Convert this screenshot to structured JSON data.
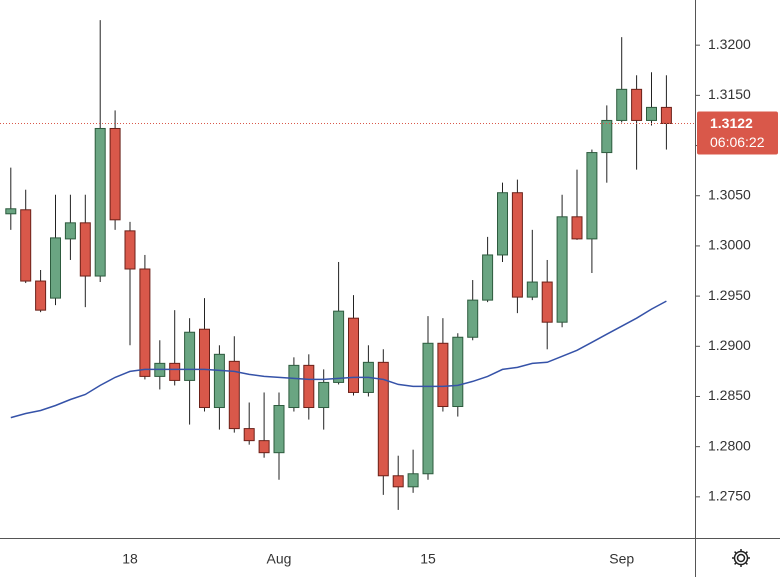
{
  "chart_data": {
    "type": "candlestick",
    "categories": [
      null,
      null,
      null,
      null,
      null,
      null,
      null,
      null,
      "18",
      null,
      null,
      null,
      null,
      null,
      null,
      null,
      null,
      null,
      "Aug",
      null,
      null,
      null,
      null,
      null,
      null,
      null,
      null,
      null,
      "15",
      null,
      null,
      null,
      null,
      null,
      null,
      null,
      null,
      null,
      null,
      null,
      null,
      "Sep",
      null,
      null,
      null
    ],
    "open": [
      1.3032,
      1.3036,
      1.2965,
      1.2948,
      1.3007,
      1.3023,
      1.297,
      1.3117,
      1.3015,
      1.2977,
      1.287,
      1.2883,
      1.2866,
      1.2917,
      1.2839,
      1.2885,
      1.2818,
      1.2806,
      1.2794,
      1.2839,
      1.2881,
      1.2839,
      1.2864,
      1.2928,
      1.2854,
      1.2884,
      1.2771,
      1.276,
      1.2773,
      1.2903,
      1.284,
      1.2909,
      1.2946,
      1.2991,
      1.3053,
      1.2949,
      1.2964,
      1.2924,
      1.3029,
      1.3007,
      1.3093,
      1.3125,
      1.3156,
      1.3125,
      1.3138
    ],
    "high": [
      1.3078,
      1.3056,
      1.2976,
      1.3051,
      1.3051,
      1.3051,
      1.3225,
      1.3135,
      1.3024,
      1.2991,
      1.2906,
      1.2936,
      1.2928,
      1.2948,
      1.2901,
      1.291,
      1.2844,
      1.2854,
      1.2854,
      1.2889,
      1.2892,
      1.2877,
      1.2984,
      1.2951,
      1.2901,
      1.2897,
      1.2791,
      1.2797,
      1.293,
      1.2928,
      1.2913,
      1.2966,
      1.3009,
      1.3063,
      1.3066,
      1.3016,
      1.2986,
      1.3051,
      1.3076,
      1.3096,
      1.314,
      1.3208,
      1.317,
      1.3173,
      1.317
    ],
    "low": [
      1.3016,
      1.2963,
      1.2934,
      1.2941,
      1.2986,
      1.2939,
      1.2964,
      1.3016,
      1.2901,
      1.2867,
      1.2857,
      1.2861,
      1.2822,
      1.2835,
      1.2817,
      1.2814,
      1.2802,
      1.2789,
      1.2767,
      1.2835,
      1.2827,
      1.2817,
      1.2862,
      1.2851,
      1.285,
      1.2752,
      1.2737,
      1.2754,
      1.2767,
      1.2835,
      1.283,
      1.2906,
      1.2944,
      1.2984,
      1.2933,
      1.2946,
      1.2897,
      1.2919,
      1.3006,
      1.2973,
      1.3063,
      1.3123,
      1.3076,
      1.312,
      1.3096
    ],
    "close": [
      1.3037,
      1.2965,
      1.2936,
      1.3008,
      1.3023,
      1.297,
      1.3117,
      1.3026,
      1.2977,
      1.287,
      1.2883,
      1.2866,
      1.2914,
      1.2839,
      1.2892,
      1.2818,
      1.2806,
      1.2794,
      1.2841,
      1.2881,
      1.2839,
      1.2864,
      1.2935,
      1.2854,
      1.2884,
      1.2771,
      1.276,
      1.2773,
      1.2903,
      1.284,
      1.2909,
      1.2946,
      1.2991,
      1.3053,
      1.2949,
      1.2964,
      1.2924,
      1.3029,
      1.3007,
      1.3093,
      1.3125,
      1.3156,
      1.3125,
      1.3138,
      1.3122
    ],
    "up_color": "#6aa582",
    "down_color": "#d9584a",
    "lines": [
      {
        "color": "#3552a8",
        "values": [
          1.2829,
          1.2833,
          1.2836,
          1.2841,
          1.2847,
          1.2852,
          1.2861,
          1.2869,
          1.2875,
          1.2877,
          1.2877,
          1.2877,
          1.2877,
          1.2877,
          1.2876,
          1.2875,
          1.2872,
          1.287,
          1.2869,
          1.2868,
          1.2867,
          1.2867,
          1.2868,
          1.2869,
          1.2869,
          1.2867,
          1.2862,
          1.286,
          1.286,
          1.286,
          1.2861,
          1.2865,
          1.287,
          1.2877,
          1.2879,
          1.2883,
          1.2884,
          1.289,
          1.2896,
          1.2904,
          1.2912,
          1.292,
          1.2928,
          1.2937,
          1.2945
        ]
      }
    ],
    "ylim": [
      1.2709,
      1.3245
    ],
    "yticks": [
      {
        "value": 1.275,
        "label": "1.2750"
      },
      {
        "value": 1.28,
        "label": "1.2800"
      },
      {
        "value": 1.285,
        "label": "1.2850"
      },
      {
        "value": 1.29,
        "label": "1.2900"
      },
      {
        "value": 1.295,
        "label": "1.2950"
      },
      {
        "value": 1.3,
        "label": "1.3000"
      },
      {
        "value": 1.305,
        "label": "1.3050"
      },
      {
        "value": 1.31,
        "label": "1.3100"
      },
      {
        "value": 1.315,
        "label": "1.3150"
      },
      {
        "value": 1.32,
        "label": "1.3200"
      }
    ],
    "current_price": 1.3122,
    "countdown": "06:06:22",
    "current_color": "#d9584a"
  }
}
